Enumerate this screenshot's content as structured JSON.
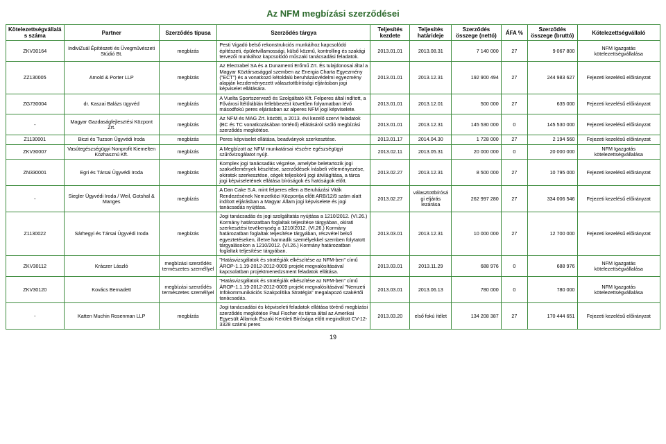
{
  "title": "Az NFM megbízási szerződései",
  "page_number": "19",
  "columns": [
    "Kötelezettségvállalás száma",
    "Partner",
    "Szerződés típusa",
    "Szerződés tárgya",
    "Teljesítés kezdete",
    "Teljesítés határideje",
    "Szerződés összege (nettó)",
    "ÁFA %",
    "Szerződés összege (bruttó)",
    "Kötelezettségvállaló"
  ],
  "rows": [
    {
      "id": "ZKV30164",
      "partner": "IndiviZuál Építészeti és Üvegművészeti Stúdió Bt.",
      "type": "megbízás",
      "subject": "Pesti Vigadó belső rekonstrukciós munkáihoz kapcsolódó építészeti, épületvillamossági, külső közmű, kontrolling és szakági tervezői munkához kapcsolódó műszaki tanácsadási feladatok.",
      "start": "2013.01.01",
      "end": "2013.08.31",
      "net": "7 140 000",
      "vat": "27",
      "gross": "9 067 800",
      "obligor": "NFM Igazgatás kötelezettségvállalása"
    },
    {
      "id": "ZZ130005",
      "partner": "Arnold & Porter LLP",
      "type": "megbízás",
      "subject": "Az Electrabel SA és a Dunamenti Erőmű Zrt. És tulajdonosai által a Magyar Köztársasággal szemben az Energia Charta Egyezmény (\"ECT\") és a vonatkozó kétoldalú beruházásvédelmi egyezmény alapján kezdeményezett választottbírósági eljárásban jogi képviselet ellátására.",
      "start": "2013.01.01",
      "end": "2013.12.31",
      "net": "192 900 494",
      "vat": "27",
      "gross": "244 983 627",
      "obligor": "Fejezeti kezelésű előirányzat"
    },
    {
      "id": "ZG730004",
      "partner": "dr. Kaszai Balázs ügyvéd",
      "type": "megbízás",
      "subject": "A Vuelta Sportszervező és Szolgáltató Kft. Felperes által indított, a Fővárosi Ítélőtáblán fellebbezést követően folyamatban lévő másodfokú peres eljárásban az alperes NFM jogi képviselete.",
      "start": "2013.01.01",
      "end": "2013.12.01",
      "net": "500 000",
      "vat": "27",
      "gross": "635 000",
      "obligor": "Fejezeti kezelésű előirányzat"
    },
    {
      "id": "-",
      "partner": "Magyar Gazdaságfejlesztési Központ Zrt.",
      "type": "megbízás",
      "subject": "Az NFM és MAG Zrt. közötti, a 2013. évi kezelő szervi feladatok (BC és TC vonatkozásában történő) ellátásáról szóló megbízási szerződés megkötése.",
      "start": "2013.01.01",
      "end": "2013.12.31",
      "net": "145 530 000",
      "vat": "0",
      "gross": "145 530 000",
      "obligor": "Fejezeti kezelésű előirányzat"
    },
    {
      "id": "Z1130001",
      "partner": "Biczi és Tuzson Ügyvédi Iroda",
      "type": "megbízás",
      "subject": "Peres képviselet ellátása, beadványok szerkesztése.",
      "start": "2013.01.17",
      "end": "2014.04.30",
      "net": "1 728 000",
      "vat": "27",
      "gross": "2 194 560",
      "obligor": "Fejezeti kezelésű előirányzat"
    },
    {
      "id": "ZKV30007",
      "partner": "Vasútegészségügyi Nonprofit Kiemelten Közhasznú Kft.",
      "type": "megbízás",
      "subject": "A Megbízott az NFM munkatársai részére egészségügyi szűrővizsgálatot nyújt.",
      "start": "2013.02.11",
      "end": "2013.05.31",
      "net": "20 000 000",
      "vat": "0",
      "gross": "20 000 000",
      "obligor": "NFM Igazgatás kötelezettségvállalása"
    },
    {
      "id": "ZN330001",
      "partner": "Egri és Társai Ügyvédi Iroda",
      "type": "megbízás",
      "subject": "Komplex jogi tanácsadás végzése, amelybe beletartozik jogi szakvélemények készítése, szerződések írásbeli véleményezése, okiratok szerkesztése, cégek teljeskörű jogi átvilágítása, a tárca jogi képviseletének ellátása bíróságok és hatóságok előtt.",
      "start": "2013.02.27",
      "end": "2013.12.31",
      "net": "8 500 000",
      "vat": "27",
      "gross": "10 795 000",
      "obligor": "Fejezeti kezelésű előirányzat"
    },
    {
      "id": "-",
      "partner": "Siegler Ügyvédi Iroda / Weil, Gotshal & Manges",
      "type": "megbízás",
      "subject": "A Dan Cake S.A. mint felperes ellen a Beruházási Viták Rendezésének Nemzetközi Központja előtt ARB/12/9 szám alatt indított eljárásban a Magyar Állam jogi képviselete és jogi tanácsadás nyújtása.",
      "start": "2013.02.27",
      "end": "választottbírósági eljárás lezárása",
      "net": "262 997 280",
      "vat": "27",
      "gross": "334 006 546",
      "obligor": "Fejezeti kezelésű előirányzat"
    },
    {
      "id": "Z1130022",
      "partner": "Sárhegyi és Társai Ügyvédi Iroda",
      "type": "megbízás",
      "subject": "Jogi tanácsadás és jogi szolgáltatás nyújtása a 1210/2012. (VI.26.) Kormány határozatban foglaltak teljesítése tárgyában, okirati szerkesztési tevékenység a 1210/2012. (VI.26.) Kormány határozatban foglaltak teljesítése tárgyában, részvétel belső egyeztetéseken, illetve harmadik személyekkel szemben folytatott tárgyalásokon a 1210/2012. (VI.26.) Kormány határozatban foglaltak teljesítése tárgyában.",
      "start": "2013.03.01",
      "end": "2013.12.31",
      "net": "10 000 000",
      "vat": "27",
      "gross": "12 700 000",
      "obligor": "Fejezeti kezelésű előirányzat"
    },
    {
      "id": "ZKV30112",
      "partner": "Kráczer László",
      "type": "megbízási szerződés természetes személlyel",
      "subject": "\"Hatásvizsgálatok és stratégiák elkészítése az NFM-ben\" című ÁROP-1.1.19-2012-2012-0009 projekt megvalósításával kapcsolatban projektmenedzsment feladatok ellátása.",
      "start": "2013.03.01",
      "end": "2013.11.29",
      "net": "688 976",
      "vat": "0",
      "gross": "688 976",
      "obligor": "NFM Igazgatás kötelezettségvállalása"
    },
    {
      "id": "ZKV30120",
      "partner": "Kovács Bernadett",
      "type": "megbízási szerződés természetes személlyel",
      "subject": "\"Hatásvizsgálatok és stratégiák elkészítése az NFM-ben\" című ÁROP-1.1.19-2012-2012-0009 projekt megvalósításával \"Nemzeti Infokommunikációs Szakpolitika Stratégia\" megalapozó szakértői tanácsadás.",
      "start": "2013.03.01",
      "end": "2013.06.13",
      "net": "780 000",
      "vat": "0",
      "gross": "780 000",
      "obligor": "NFM Igazgatás kötelezettségvállalása"
    },
    {
      "id": "-",
      "partner": "Katten Muchin Rosenman LLP",
      "type": "megbízás",
      "subject": "Jogi tanácsadási és képviseleti feladatok ellátása törénő megbízási szerződés megkötése Paul Fischer és társa által az Amerikai Egyesült Államok Északi Kerületi Bírósága előtt megindított CV-12-3328 számú peres",
      "start": "2013.03.20",
      "end": "első fokú ítélet",
      "net": "134 208 387",
      "vat": "27",
      "gross": "170 444 651",
      "obligor": "Fejezeti kezelésű előirányzat"
    }
  ]
}
